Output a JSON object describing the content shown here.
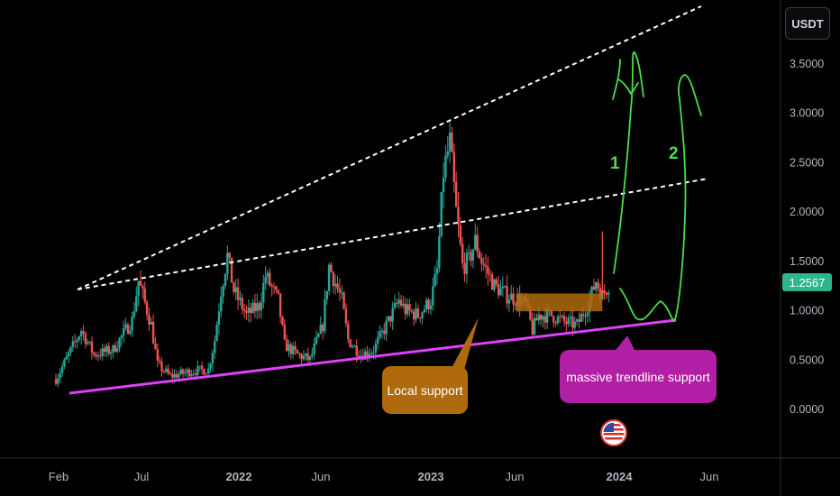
{
  "ticker": {
    "currency_label": "USDT"
  },
  "current_price": {
    "label": "1.2567",
    "color": "#2fb58e"
  },
  "annotations": {
    "local_support": "Local support",
    "trendline_support": "massive trendline support",
    "wave_1": "1",
    "wave_2": "2"
  },
  "colors": {
    "bull": "#26a69a",
    "bear": "#ef5350",
    "trendline": "#e040fb",
    "support_zone": "#b06a0e",
    "projection": "#4ade4a",
    "channel": "#ffffff"
  },
  "icons": {
    "flag": "us-flag-icon"
  },
  "chart_data": {
    "type": "candlestick",
    "title": "",
    "xlabel": "",
    "ylabel": "",
    "x_ticks": [
      "Feb",
      "Jul",
      "2022",
      "Jun",
      "2023",
      "Jun",
      "2024",
      "Jun"
    ],
    "y_ticks": [
      "3.5000",
      "3.0000",
      "2.5000",
      "2.0000",
      "1.5000",
      "1.0000",
      "0.5000",
      "0.0000"
    ],
    "ylim": [
      -0.4,
      3.8
    ],
    "last_price": 1.2567,
    "price_path": [
      [
        0,
        0.3
      ],
      [
        2,
        0.55
      ],
      [
        4,
        0.8
      ],
      [
        6,
        0.55
      ],
      [
        9,
        0.6
      ],
      [
        12,
        0.9
      ],
      [
        13,
        1.3
      ],
      [
        15,
        0.85
      ],
      [
        16,
        0.45
      ],
      [
        18,
        0.33
      ],
      [
        21,
        0.38
      ],
      [
        24,
        0.4
      ],
      [
        25,
        0.7
      ],
      [
        26,
        1.2
      ],
      [
        27,
        1.55
      ],
      [
        28,
        1.2
      ],
      [
        30,
        0.95
      ],
      [
        32,
        1.05
      ],
      [
        33,
        1.35
      ],
      [
        35,
        1.1
      ],
      [
        36,
        0.65
      ],
      [
        38,
        0.55
      ],
      [
        40,
        0.5
      ],
      [
        42,
        0.85
      ],
      [
        43,
        1.45
      ],
      [
        45,
        1.1
      ],
      [
        46,
        0.7
      ],
      [
        48,
        0.55
      ],
      [
        50,
        0.6
      ],
      [
        52,
        0.85
      ],
      [
        54,
        1.1
      ],
      [
        55,
        1.0
      ],
      [
        57,
        0.95
      ],
      [
        59,
        1.1
      ],
      [
        60,
        1.4
      ],
      [
        61,
        2.4
      ],
      [
        62,
        2.7
      ],
      [
        63,
        2.0
      ],
      [
        64,
        1.45
      ],
      [
        65,
        1.5
      ],
      [
        66,
        1.7
      ],
      [
        67,
        1.5
      ],
      [
        69,
        1.25
      ],
      [
        71,
        1.15
      ],
      [
        73,
        1.1
      ],
      [
        74,
        1.05
      ],
      [
        75,
        0.8
      ],
      [
        76,
        0.95
      ],
      [
        78,
        0.95
      ],
      [
        80,
        0.88
      ],
      [
        82,
        0.85
      ],
      [
        84,
        1.1
      ],
      [
        85,
        1.3
      ],
      [
        86,
        1.15
      ],
      [
        87,
        1.26
      ]
    ],
    "spikes": [
      [
        62,
        2.75
      ],
      [
        86,
        1.8
      ]
    ],
    "lines": [
      {
        "name": "",
        "kind": "upper-channel",
        "style": "dashed",
        "from": [
          0,
          1.08
        ],
        "to": [
          87,
          3.8
        ]
      },
      {
        "name": "",
        "kind": "mid-channel",
        "style": "dashed",
        "from": [
          0,
          1.08
        ],
        "to": [
          87,
          2.25
        ]
      },
      {
        "name": "massive trendline support",
        "kind": "trendline",
        "style": "solid",
        "from": [
          0,
          0.16
        ],
        "to": [
          87,
          0.89
        ]
      }
    ],
    "zones": [
      {
        "name": "Local support",
        "from": 73,
        "to": 86,
        "low": 0.99,
        "high": 1.17
      }
    ],
    "projections": [
      {
        "name": "1",
        "path": [
          [
            86,
            1.35
          ],
          [
            88,
            3.55
          ]
        ]
      },
      {
        "name": "2",
        "path": [
          [
            86,
            1.05
          ],
          [
            90,
            0.85
          ],
          [
            92,
            1.05
          ],
          [
            95,
            3.3
          ]
        ]
      }
    ]
  }
}
